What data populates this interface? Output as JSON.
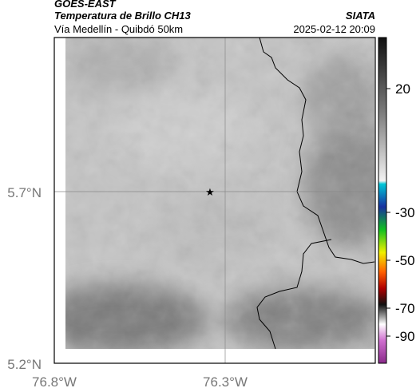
{
  "header": {
    "source": "GOES-EAST",
    "title": "Temperatura de Brillo CH13",
    "subtitle": "Vía Medellín - Quibdó 50km",
    "credit": "SIATA",
    "timestamp": "2025-02-12 20:09"
  },
  "map": {
    "lat_labels": [
      "5.7°N",
      "5.2°N"
    ],
    "lon_labels": [
      "76.8°W",
      "76.3°W"
    ]
  },
  "colorbar": {
    "ticks": [
      "20",
      "-30",
      "-50",
      "-70",
      "-90"
    ]
  }
}
